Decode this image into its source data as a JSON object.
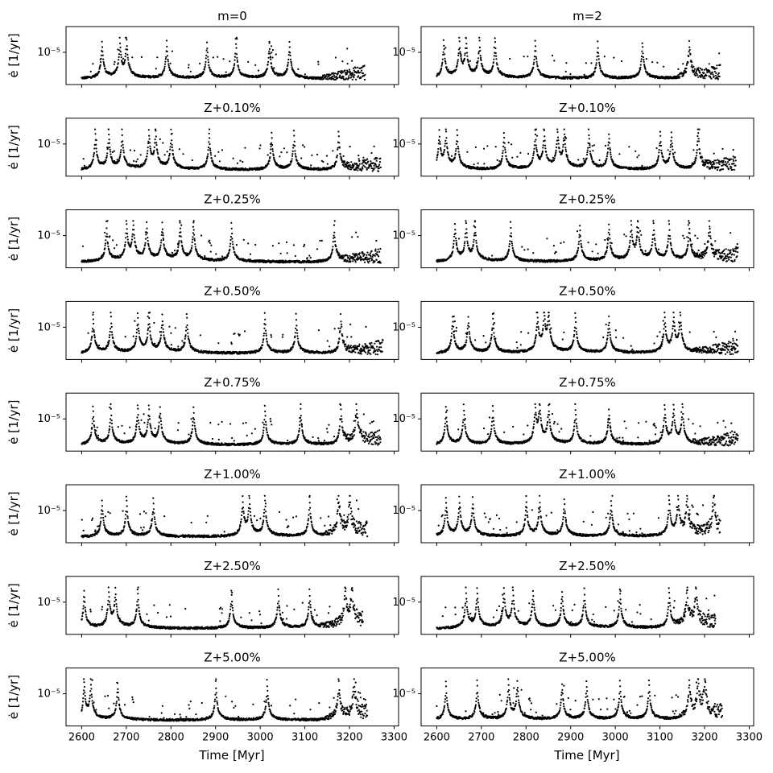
{
  "chart_data": {
    "type": "scatter",
    "layout": "8 rows x 2 columns small multiples, shared x axis",
    "xlabel": "Time [Myr]",
    "ylabel": "ė [1/yr]",
    "yscale": "log",
    "ytick_labels": [
      "10⁻⁵"
    ],
    "y_reference_value": 1e-05,
    "xticks": [
      2600,
      2700,
      2800,
      2900,
      3000,
      3100,
      3200,
      3300
    ],
    "xlim": [
      2565,
      3310
    ],
    "grid": false,
    "legend": "none",
    "marker_color": "#000000",
    "note": "",
    "panels": [
      {
        "title": "m=0",
        "t_end": 3235,
        "peaks": [
          2645,
          2685,
          2700,
          2790,
          2880,
          2945,
          3020,
          3065
        ]
      },
      {
        "title": "m=2",
        "t_end": 3235,
        "peaks": [
          2615,
          2650,
          2665,
          2695,
          2730,
          2820,
          2960,
          3060,
          3165
        ]
      },
      {
        "title": "Z+0.10%",
        "t_end": 3270,
        "peaks": [
          2630,
          2660,
          2690,
          2750,
          2765,
          2800,
          2885,
          3025,
          3075,
          3175
        ]
      },
      {
        "title": "Z+0.10%",
        "t_end": 3270,
        "peaks": [
          2605,
          2620,
          2645,
          2750,
          2820,
          2840,
          2870,
          2885,
          2940,
          2985,
          3100,
          3125,
          3185
        ]
      },
      {
        "title": "Z+0.25%",
        "t_end": 3270,
        "peaks": [
          2655,
          2700,
          2715,
          2745,
          2780,
          2820,
          2850,
          2935,
          3165
        ]
      },
      {
        "title": "Z+0.25%",
        "t_end": 3275,
        "peaks": [
          2640,
          2665,
          2685,
          2765,
          2920,
          2985,
          3035,
          3050,
          3085,
          3120,
          3165,
          3210
        ]
      },
      {
        "title": "Z+0.50%",
        "t_end": 3275,
        "peaks": [
          2625,
          2665,
          2725,
          2750,
          2780,
          2835,
          3010,
          3080,
          3180
        ]
      },
      {
        "title": "Z+0.50%",
        "t_end": 3275,
        "peaks": [
          2635,
          2670,
          2725,
          2825,
          2840,
          2850,
          2910,
          2985,
          3110,
          3130,
          3145
        ]
      },
      {
        "title": "Z+0.75%",
        "t_end": 3270,
        "peaks": [
          2625,
          2665,
          2725,
          2750,
          2775,
          2850,
          3010,
          3090,
          3180,
          3215
        ]
      },
      {
        "title": "Z+0.75%",
        "t_end": 3275,
        "peaks": [
          2620,
          2660,
          2725,
          2820,
          2830,
          2850,
          2910,
          2985,
          3110,
          3130,
          3150
        ]
      },
      {
        "title": "Z+1.00%",
        "t_end": 3240,
        "peaks": [
          2645,
          2700,
          2760,
          2960,
          2975,
          3010,
          3110,
          3175,
          3200
        ]
      },
      {
        "title": "Z+1.00%",
        "t_end": 3235,
        "peaks": [
          2620,
          2650,
          2680,
          2800,
          2830,
          2885,
          2990,
          3120,
          3140,
          3160,
          3220
        ]
      },
      {
        "title": "Z+2.50%",
        "t_end": 3230,
        "peaks": [
          2605,
          2660,
          2675,
          2725,
          2935,
          3040,
          3110,
          3190,
          3205
        ]
      },
      {
        "title": "Z+2.50%",
        "t_end": 3225,
        "peaks": [
          2665,
          2690,
          2750,
          2770,
          2815,
          2880,
          2930,
          3010,
          3120,
          3160,
          3180
        ]
      },
      {
        "title": "Z+5.00%",
        "t_end": 3240,
        "peaks": [
          2605,
          2620,
          2680,
          2900,
          3015,
          3175,
          3210
        ]
      },
      {
        "title": "Z+5.00%",
        "t_end": 3240,
        "peaks": [
          2620,
          2690,
          2760,
          2780,
          2880,
          2935,
          3010,
          3075,
          3165,
          3185,
          3200
        ]
      }
    ]
  }
}
